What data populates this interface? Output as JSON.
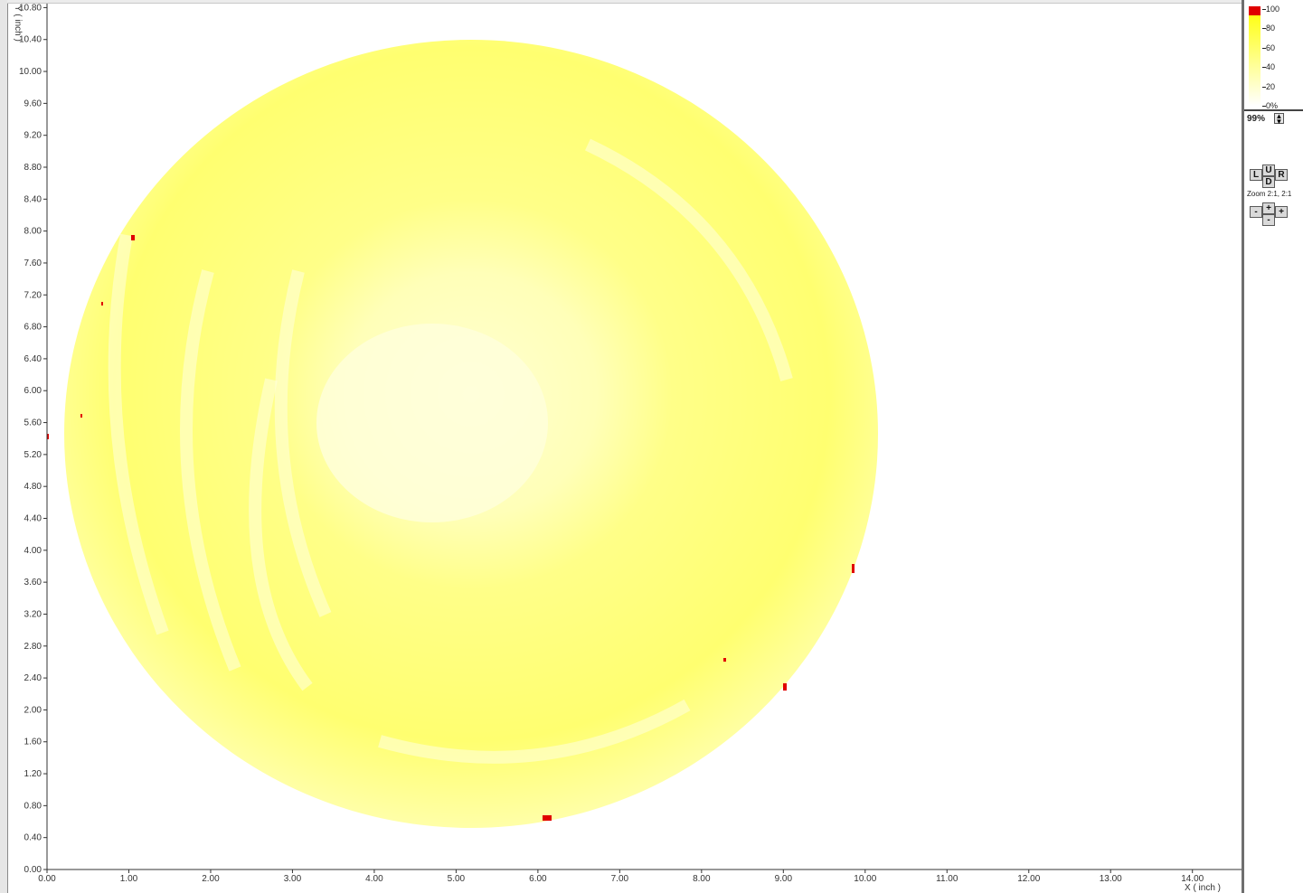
{
  "plot": {
    "y_axis_title": "Y ( inch )",
    "x_axis_title": "X ( inch )",
    "y_ticks": [
      "0.00",
      "0.40",
      "0.80",
      "1.20",
      "1.60",
      "2.00",
      "2.40",
      "2.80",
      "3.20",
      "3.60",
      "4.00",
      "4.40",
      "4.80",
      "5.20",
      "5.60",
      "6.00",
      "6.40",
      "6.80",
      "7.20",
      "7.60",
      "8.00",
      "8.40",
      "8.80",
      "9.20",
      "9.60",
      "10.00",
      "10.40",
      "10.80"
    ],
    "x_ticks": [
      "0.00",
      "1.00",
      "2.00",
      "3.00",
      "4.00",
      "5.00",
      "6.00",
      "7.00",
      "8.00",
      "9.00",
      "10.00",
      "11.00",
      "12.00",
      "13.00",
      "14.00"
    ],
    "x_range": [
      0,
      14.6
    ],
    "y_range": [
      0,
      10.85
    ],
    "colors": {
      "base": "#ffff66",
      "light": "#ffffcc",
      "defect": "#e00000"
    }
  },
  "legend": {
    "labels": [
      "100",
      "80",
      "60",
      "40",
      "20",
      "0%"
    ],
    "colors": {
      "max": "#e00000",
      "high": "#ffff00",
      "low": "#ffffff"
    }
  },
  "controls": {
    "zoom_percent": "99%",
    "left_label": "L",
    "up_label": "U",
    "down_label": "D",
    "right_label": "R",
    "zoom_info": "Zoom 2:1, 2:1",
    "minus_label": "-",
    "plus_label": "+",
    "v_plus_label": "+",
    "v_minus_label": "-"
  }
}
